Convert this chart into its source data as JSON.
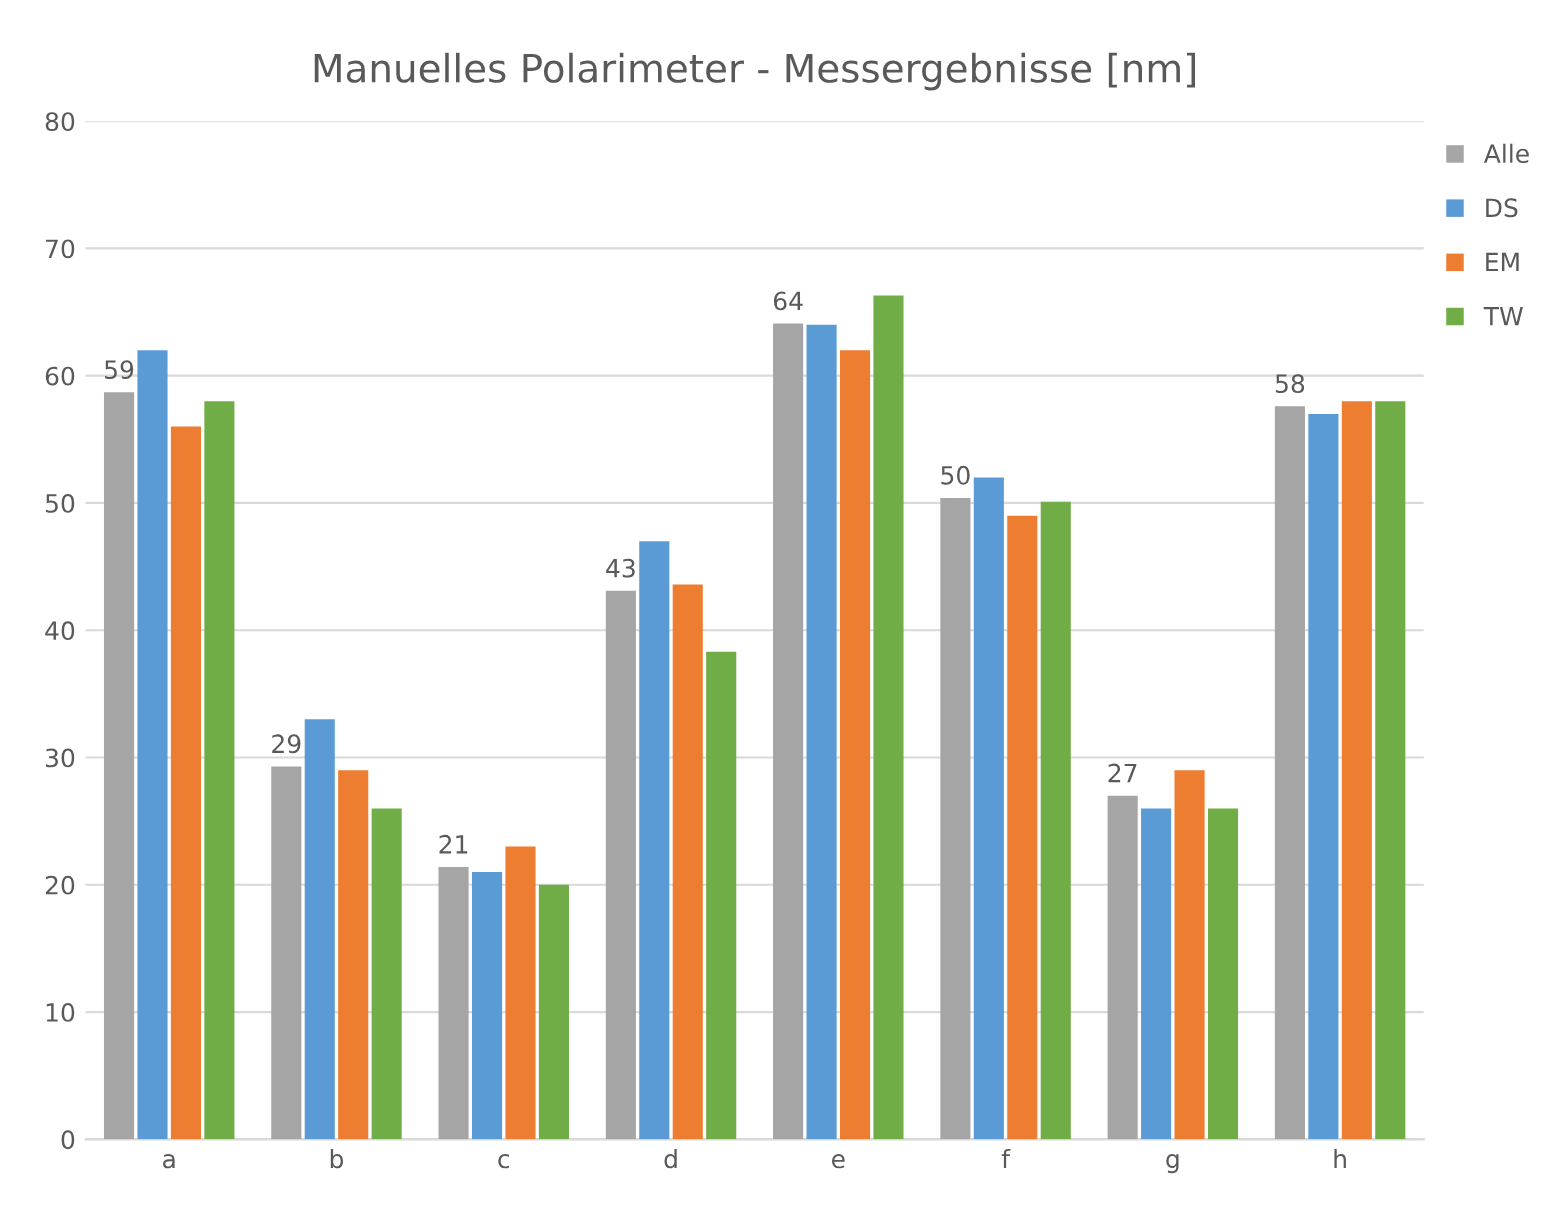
{
  "chart_data": {
    "type": "bar",
    "title": "Manuelles Polarimeter - Messergebnisse [nm]",
    "categories": [
      "a",
      "b",
      "c",
      "d",
      "e",
      "f",
      "g",
      "h"
    ],
    "series": [
      {
        "name": "Alle",
        "color": "#a5a5a5",
        "values": [
          58.7,
          29.3,
          21.4,
          43.1,
          64.1,
          50.4,
          27.0,
          57.6
        ],
        "value_labels": [
          "59",
          "29",
          "21",
          "43",
          "64",
          "50",
          "27",
          "58"
        ]
      },
      {
        "name": "DS",
        "color": "#5b9bd5",
        "values": [
          62,
          33,
          21,
          47,
          64,
          52,
          26,
          57
        ]
      },
      {
        "name": "EM",
        "color": "#ed7d31",
        "values": [
          56,
          29,
          23,
          43.6,
          62,
          49,
          29,
          58
        ]
      },
      {
        "name": "TW",
        "color": "#70ad47",
        "values": [
          58,
          26,
          20,
          38.3,
          66.3,
          50.1,
          26,
          58
        ]
      }
    ],
    "ylim": [
      0,
      80
    ],
    "yticks": [
      0,
      10,
      20,
      30,
      40,
      50,
      60,
      70,
      80
    ],
    "grid": "y",
    "legend": "right"
  }
}
